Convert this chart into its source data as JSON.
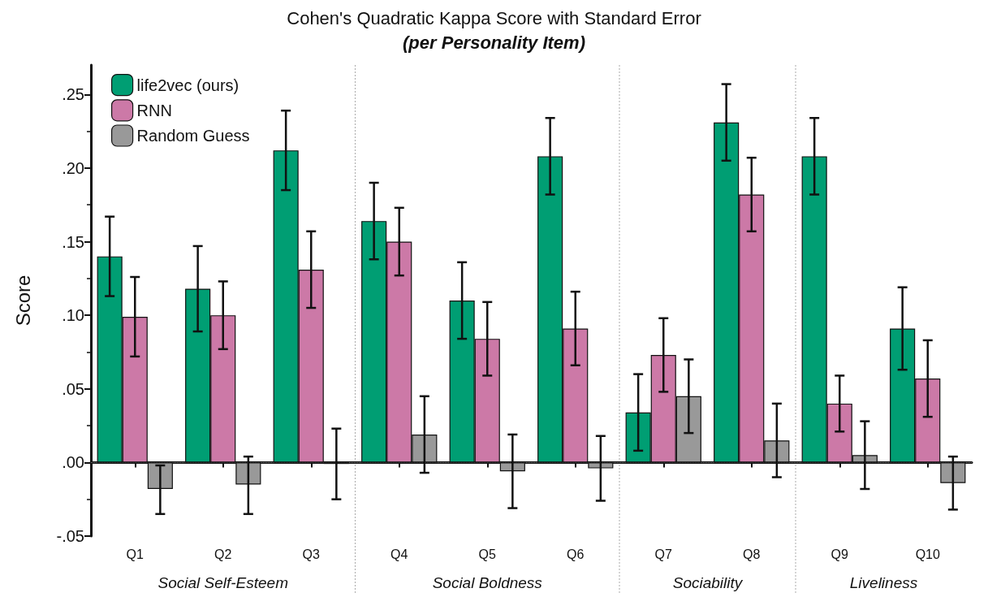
{
  "chart_data": {
    "type": "bar",
    "title": "Cohen's Quadratic Kappa Score with Standard Error",
    "subtitle": "(per Personality Item)",
    "ylabel": "Score",
    "categories": [
      "Q1",
      "Q2",
      "Q3",
      "Q4",
      "Q5",
      "Q6",
      "Q7",
      "Q8",
      "Q9",
      "Q10"
    ],
    "series": [
      {
        "name": "life2vec (ours)",
        "color": "#009e73",
        "values": [
          0.14,
          0.118,
          0.212,
          0.164,
          0.11,
          0.208,
          0.034,
          0.231,
          0.208,
          0.091
        ],
        "errors": [
          [
            0.113,
            0.167
          ],
          [
            0.089,
            0.147
          ],
          [
            0.185,
            0.239
          ],
          [
            0.138,
            0.19
          ],
          [
            0.084,
            0.136
          ],
          [
            0.182,
            0.234
          ],
          [
            0.008,
            0.06
          ],
          [
            0.205,
            0.257
          ],
          [
            0.182,
            0.234
          ],
          [
            0.063,
            0.119
          ]
        ]
      },
      {
        "name": "RNN",
        "color": "#cc79a7",
        "values": [
          0.099,
          0.1,
          0.131,
          0.15,
          0.084,
          0.091,
          0.073,
          0.182,
          0.04,
          0.057
        ],
        "errors": [
          [
            0.072,
            0.126
          ],
          [
            0.077,
            0.123
          ],
          [
            0.105,
            0.157
          ],
          [
            0.127,
            0.173
          ],
          [
            0.059,
            0.109
          ],
          [
            0.066,
            0.116
          ],
          [
            0.048,
            0.098
          ],
          [
            0.157,
            0.207
          ],
          [
            0.021,
            0.059
          ],
          [
            0.031,
            0.083
          ]
        ]
      },
      {
        "name": "Random Guess",
        "color": "#999999",
        "values": [
          -0.018,
          -0.015,
          -0.001,
          0.019,
          -0.006,
          -0.004,
          0.045,
          0.015,
          0.005,
          -0.014
        ],
        "errors": [
          [
            -0.035,
            -0.002
          ],
          [
            -0.035,
            0.004
          ],
          [
            -0.025,
            0.023
          ],
          [
            -0.007,
            0.045
          ],
          [
            -0.031,
            0.019
          ],
          [
            -0.026,
            0.018
          ],
          [
            0.02,
            0.07
          ],
          [
            -0.01,
            0.04
          ],
          [
            -0.018,
            0.028
          ],
          [
            -0.032,
            0.004
          ]
        ]
      }
    ],
    "ylim": [
      -0.05,
      0.27
    ],
    "yticks": [
      {
        "value": -0.05,
        "label": "-.05"
      },
      {
        "value": 0,
        "label": ".00"
      },
      {
        "value": 0.05,
        "label": ".05"
      },
      {
        "value": 0.1,
        "label": ".10"
      },
      {
        "value": 0.15,
        "label": ".15"
      },
      {
        "value": 0.2,
        "label": ".20"
      },
      {
        "value": 0.25,
        "label": ".25"
      }
    ],
    "ref_lines": [
      {
        "axis": "y",
        "value": 0,
        "color": "#888888",
        "line_style": "dotted"
      }
    ],
    "annotations": [
      "Social Self-Esteem",
      "Social Boldness",
      "Sociability",
      "Liveliness"
    ],
    "grid": false,
    "legend": "top left"
  }
}
